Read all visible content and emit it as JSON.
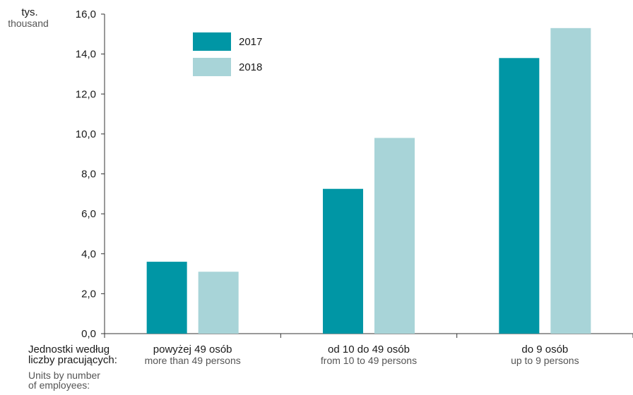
{
  "chart_data": {
    "type": "bar",
    "ylabel_pl": "tys.",
    "ylabel_en": "thousand",
    "xlabel_pl": [
      "Jednostki według",
      "liczby pracujących:"
    ],
    "xlabel_en": [
      "Units by number",
      "of employees:"
    ],
    "categories": [
      {
        "pl": "powyżej 49 osób",
        "en": "more than 49 persons"
      },
      {
        "pl": "od 10 do 49 osób",
        "en": "from 10 to 49 persons"
      },
      {
        "pl": "do 9 osób",
        "en": "up to 9 persons"
      }
    ],
    "series": [
      {
        "name": "2017",
        "color": "#0096A5",
        "values": [
          3.6,
          7.25,
          13.8
        ]
      },
      {
        "name": "2018",
        "color": "#A8D4D8",
        "values": [
          3.1,
          9.8,
          15.3
        ]
      }
    ],
    "ylim": [
      0,
      16
    ],
    "yticks": [
      "0,0",
      "2,0",
      "4,0",
      "6,0",
      "8,0",
      "10,0",
      "12,0",
      "14,0",
      "16,0"
    ],
    "grid": false,
    "legend_position": "top-left"
  }
}
